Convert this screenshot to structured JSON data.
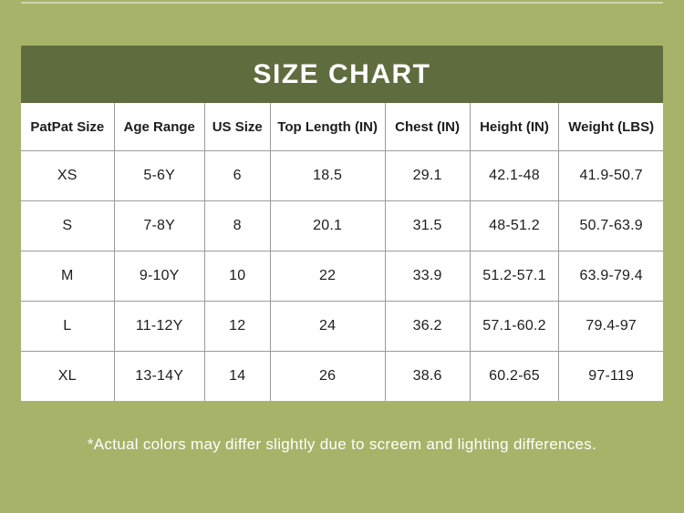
{
  "chart_data": {
    "type": "table",
    "title": "SIZE CHART",
    "columns": [
      "PatPat Size",
      "Age Range",
      "US Size",
      "Top Length (IN)",
      "Chest (IN)",
      "Height (IN)",
      "Weight (LBS)"
    ],
    "rows": [
      [
        "XS",
        "5-6Y",
        "6",
        "18.5",
        "29.1",
        "42.1-48",
        "41.9-50.7"
      ],
      [
        "S",
        "7-8Y",
        "8",
        "20.1",
        "31.5",
        "48-51.2",
        "50.7-63.9"
      ],
      [
        "M",
        "9-10Y",
        "10",
        "22",
        "33.9",
        "51.2-57.1",
        "63.9-79.4"
      ],
      [
        "L",
        "11-12Y",
        "12",
        "24",
        "36.2",
        "57.1-60.2",
        "79.4-97"
      ],
      [
        "XL",
        "13-14Y",
        "14",
        "26",
        "38.6",
        "60.2-65",
        "97-119"
      ]
    ],
    "footer_note": "*Actual colors may differ slightly due to screem and lighting differences."
  },
  "colors": {
    "background": "#a7b369",
    "header_bar": "#5f6c3e",
    "title_text": "#ffffff",
    "table_background": "#ffffff",
    "table_text": "#1d1d1d",
    "table_border": "#9b9b9b",
    "footer_text": "#ffffff",
    "top_line": "rgba(255,255,255,0.45)"
  }
}
